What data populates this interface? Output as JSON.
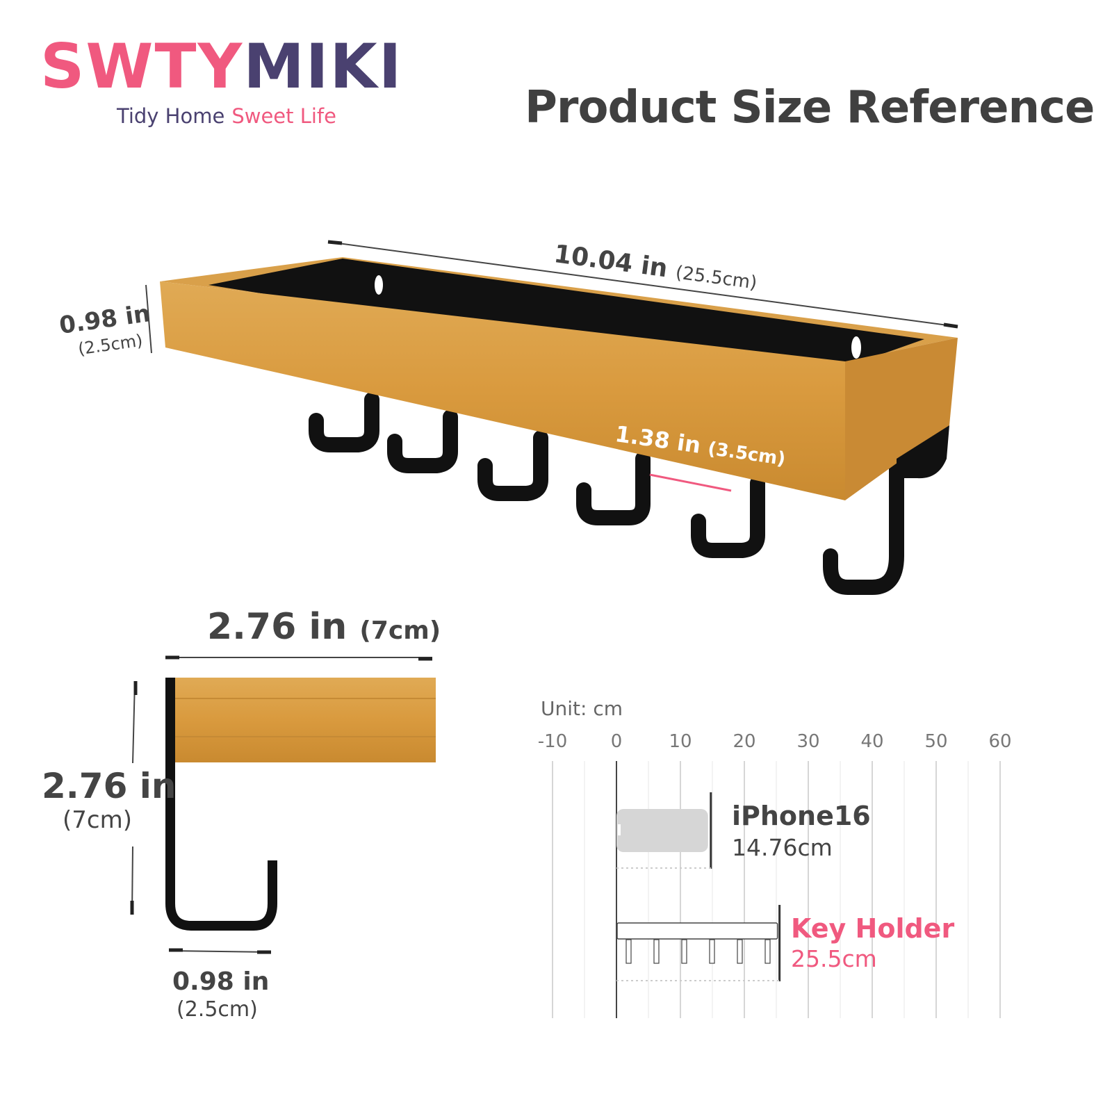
{
  "brand": {
    "logo_text_a": "SWTY",
    "logo_text_b": "MIKI",
    "tagline_a": "Tidy Home",
    "tagline_b": "Sweet Life",
    "colors": {
      "pink": "#f0597f",
      "purple": "#4a4170"
    }
  },
  "title": "Product Size Reference",
  "main_view": {
    "length": {
      "value": "10.04 in",
      "metric": "(25.5cm)"
    },
    "height": {
      "value": "0.98 in",
      "metric": "(2.5cm)"
    },
    "hook_spacing": {
      "value": "1.38 in",
      "metric": "(3.5cm)"
    }
  },
  "side_view": {
    "depth": {
      "value": "2.76 in",
      "metric": "(7cm)"
    },
    "height": {
      "value": "2.76 in",
      "metric": "(7cm)"
    },
    "hook_width": {
      "value": "0.98 in",
      "metric": "(2.5cm)"
    }
  },
  "comparison": {
    "unit_label": "Unit: cm",
    "ticks": [
      "-10",
      "0",
      "10",
      "20",
      "30",
      "40",
      "50",
      "60"
    ],
    "items": [
      {
        "name": "iPhone16",
        "value": "14.76cm",
        "length_cm": 14.76,
        "color": "#444444"
      },
      {
        "name": "Key Holder",
        "value": "25.5cm",
        "length_cm": 25.5,
        "color": "#f0597f"
      }
    ]
  }
}
